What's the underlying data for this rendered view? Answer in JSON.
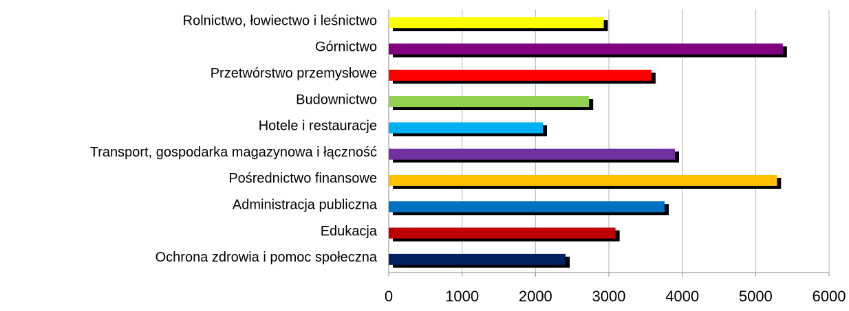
{
  "chart_data": {
    "type": "bar",
    "categories": [
      "Rolnictwo, łowiectwo i leśnictwo",
      "Górnictwo",
      "Przetwórstwo przemysłowe",
      "Budownictwo",
      "Hotele i restauracje",
      "Transport, gospodarka magazynowa i łączność",
      "Pośrednictwo finansowe",
      "Administracja publiczna",
      "Edukacja",
      "Ochrona zdrowia i pomoc społeczna"
    ],
    "values": [
      2930,
      5370,
      3580,
      2730,
      2100,
      3900,
      5290,
      3760,
      3090,
      2410
    ],
    "colors": [
      "#ffff00",
      "#800080",
      "#ff0000",
      "#92d050",
      "#00b0f0",
      "#7030a0",
      "#ffc000",
      "#0070c0",
      "#c00000",
      "#002060"
    ],
    "xlim": [
      0,
      6000
    ],
    "xticks": [
      0,
      1000,
      2000,
      3000,
      4000,
      5000,
      6000
    ],
    "grid": true
  }
}
